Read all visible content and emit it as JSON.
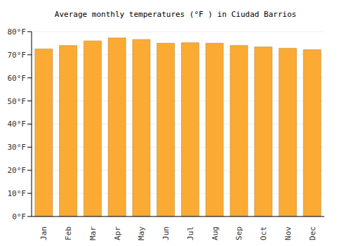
{
  "chart_data": {
    "type": "bar",
    "title": "Average monthly temperatures (°F ) in Ciudad Barrios",
    "categories": [
      "Jan",
      "Feb",
      "Mar",
      "Apr",
      "May",
      "Jun",
      "Jul",
      "Aug",
      "Sep",
      "Oct",
      "Nov",
      "Dec"
    ],
    "values": [
      72.5,
      74,
      76,
      77.3,
      76.6,
      75,
      75.2,
      75,
      74,
      73.4,
      72.8,
      72.2
    ],
    "color": "#fbab34",
    "ylim": [
      0,
      80
    ],
    "yticks": [
      {
        "value": 0,
        "label": "0°F"
      },
      {
        "value": 10,
        "label": "10°F"
      },
      {
        "value": 20,
        "label": "20°F"
      },
      {
        "value": 30,
        "label": "30°F"
      },
      {
        "value": 40,
        "label": "40°F"
      },
      {
        "value": 50,
        "label": "50°F"
      },
      {
        "value": 60,
        "label": "60°F"
      },
      {
        "value": 70,
        "label": "70°F"
      },
      {
        "value": 80,
        "label": "80°F"
      }
    ],
    "grid": true
  }
}
